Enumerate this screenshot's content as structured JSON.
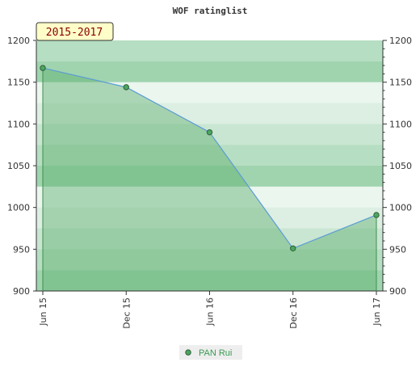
{
  "chart_data": {
    "type": "area",
    "title": "WOF ratinglist",
    "badge": "2015-2017",
    "xlabel": "",
    "ylabel": "",
    "x_ticks": [
      "Jun 15",
      "Dec 15",
      "Jun 16",
      "Dec 16",
      "Jun 17"
    ],
    "ylim": [
      900,
      1200
    ],
    "y_ticks": [
      900,
      950,
      1000,
      1050,
      1100,
      1150,
      1200
    ],
    "y_ticks_right": [
      900,
      950,
      1000,
      1050,
      1100,
      1150,
      1200
    ],
    "series": [
      {
        "name": "PAN Rui",
        "values": [
          1167,
          1144,
          1090,
          951,
          991
        ]
      }
    ],
    "legend_position": "bottom-center",
    "grid": true,
    "colors": {
      "line": "#5b9bd5",
      "area": "#5fb06e",
      "marker": "#4ca660",
      "band_dark": "#7dc493",
      "band_light": "#eef7f0",
      "badge_bg": "#fffec8",
      "badge_text": "#8b0000",
      "legend_text": "#3a9a52"
    }
  }
}
